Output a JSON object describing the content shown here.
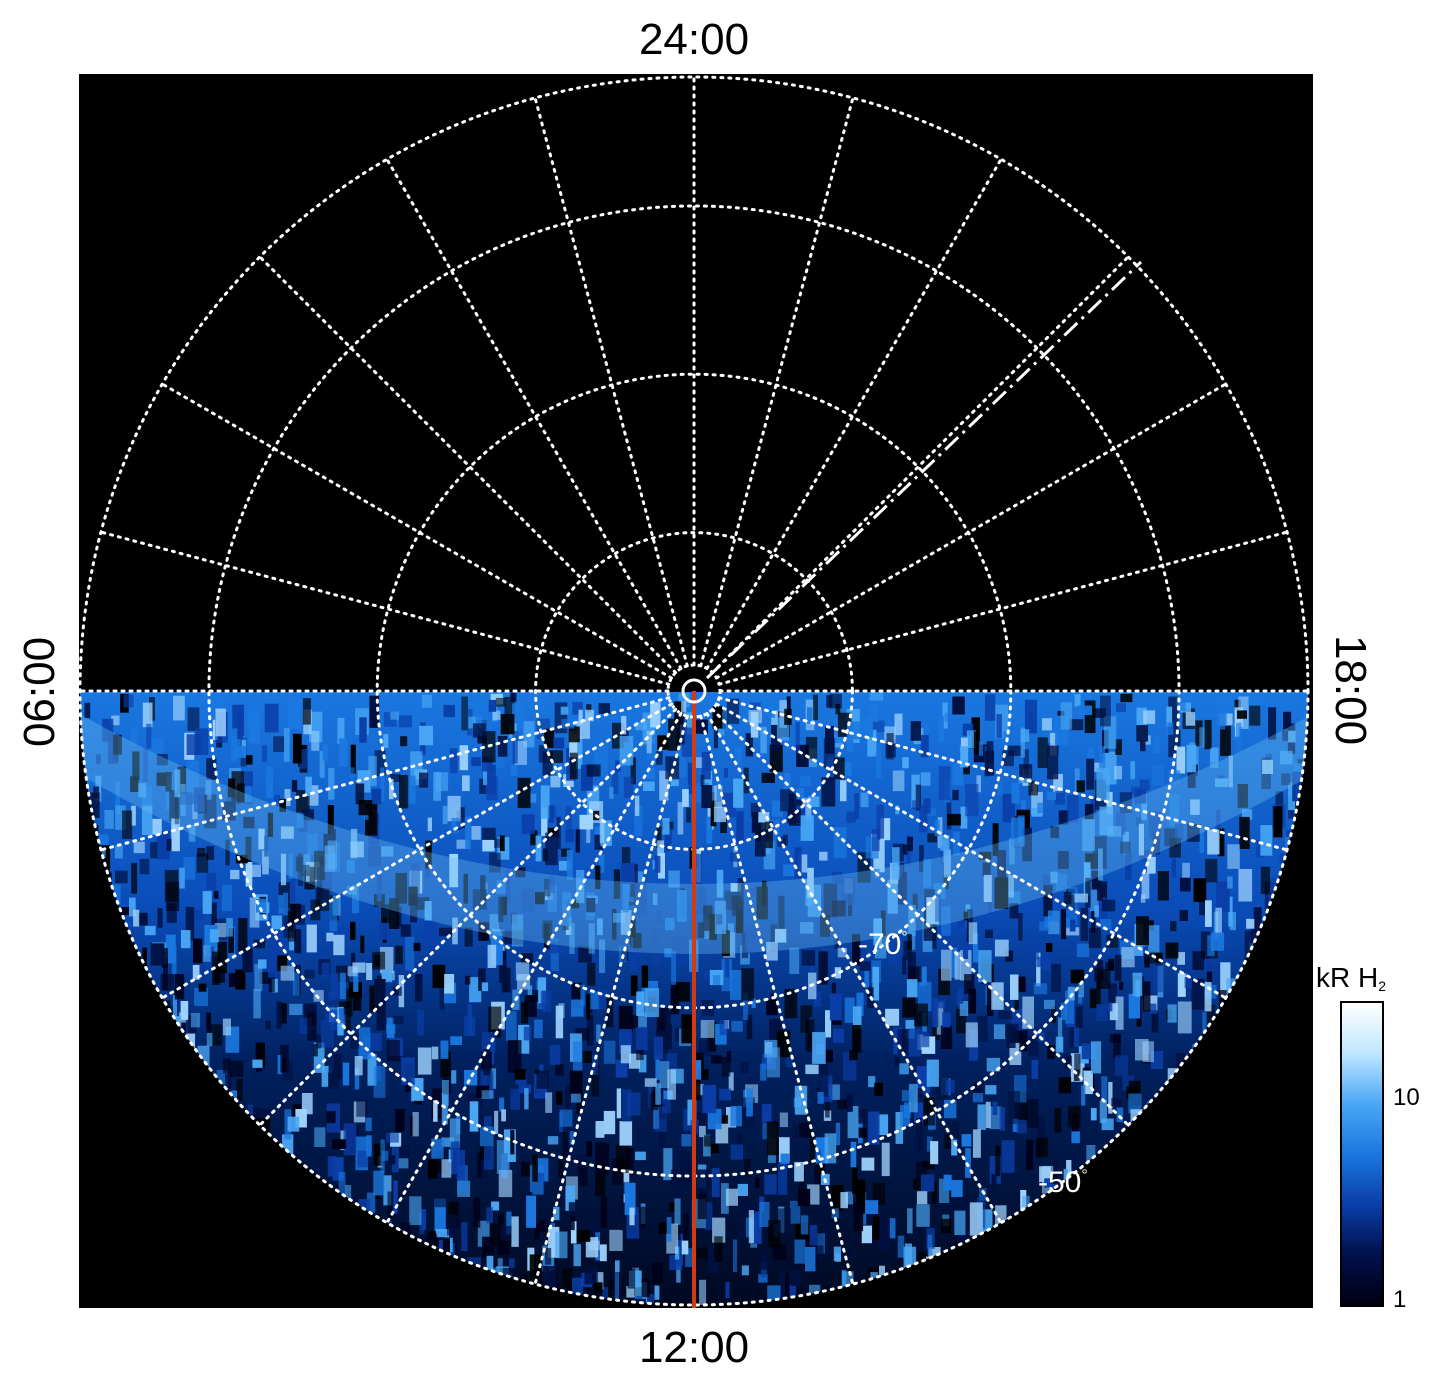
{
  "figure": {
    "time_labels": {
      "top": "24:00",
      "bottom": "12:00",
      "left": "06:00",
      "right": "18:00"
    },
    "latitude_labels": {
      "inner": "-70",
      "outer": "-50",
      "degree_symbol": "°"
    },
    "colorbar": {
      "title_main": "kR H",
      "title_sub": "2",
      "ticks": [
        "10",
        "1"
      ],
      "colors": [
        "#000010",
        "#00104a",
        "#0a3ea8",
        "#1a78e0",
        "#4aa8f5",
        "#bfe6ff",
        "#ffffff"
      ]
    },
    "colors": {
      "background": "#000000",
      "grid": "#ffffff",
      "meridian_line": "#d03a14",
      "aurora_bright": "#6cc0f5",
      "aurora_mid": "#1a78e0",
      "aurora_dark": "#002a80"
    }
  }
}
